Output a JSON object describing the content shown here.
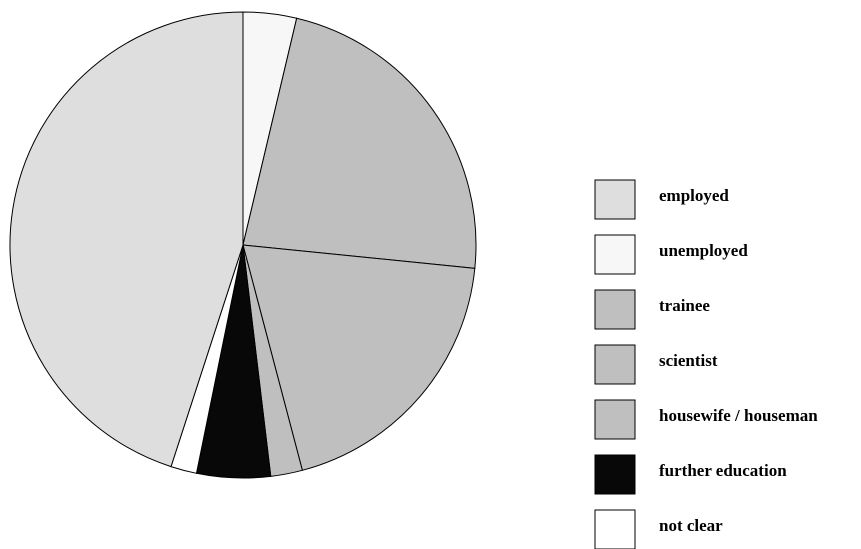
{
  "chart_data": {
    "type": "pie",
    "title": "",
    "start": "top",
    "direction": "clockwise",
    "legend_placement": "right",
    "slices": [
      {
        "label": "unemployed",
        "value": 3.7,
        "color": "#f7f7f7"
      },
      {
        "label": "trainee",
        "value": 22.9,
        "color": "#bfbfbf"
      },
      {
        "label": "scientist",
        "value": 19.3,
        "color": "#bfbfbf"
      },
      {
        "label": "housewife / houseman",
        "value": 2.2,
        "color": "#bfbfbf"
      },
      {
        "label": "further education",
        "value": 5.1,
        "color": "#080808"
      },
      {
        "label": "not clear",
        "value": 1.8,
        "color": "#ffffff"
      },
      {
        "label": "employed",
        "value": 45.0,
        "color": "#dedede"
      }
    ],
    "legend": [
      {
        "label": "employed",
        "color": "#dedede"
      },
      {
        "label": "unemployed",
        "color": "#f7f7f7"
      },
      {
        "label": "trainee",
        "color": "#bfbfbf"
      },
      {
        "label": "scientist",
        "color": "#bfbfbf"
      },
      {
        "label": "housewife / houseman",
        "color": "#bfbfbf"
      },
      {
        "label": "further education",
        "color": "#080808"
      },
      {
        "label": "not clear",
        "color": "#ffffff"
      }
    ]
  }
}
